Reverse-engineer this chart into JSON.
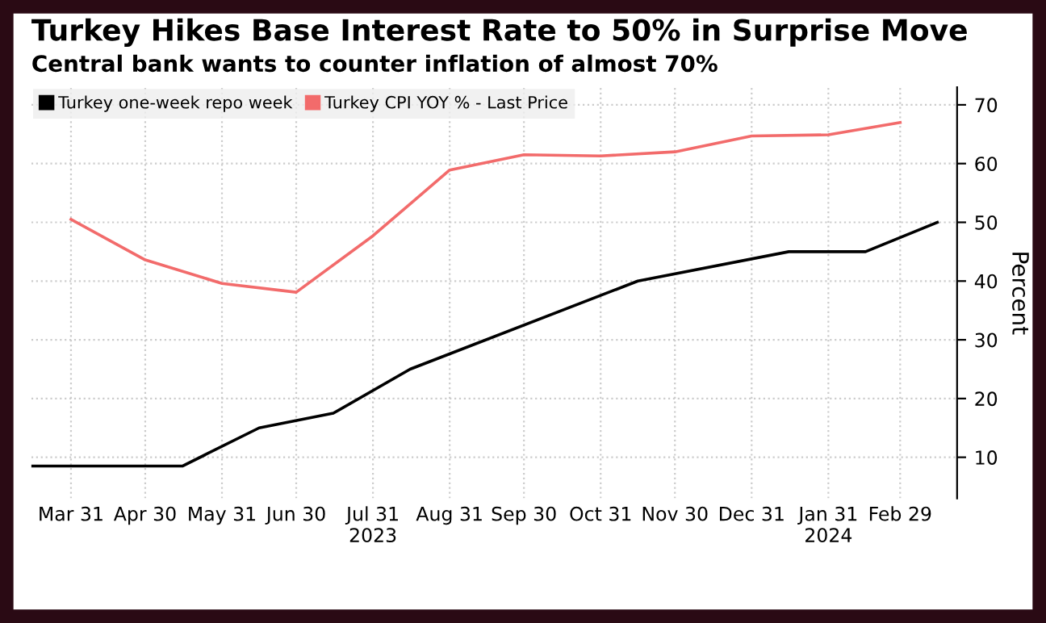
{
  "chart_data": {
    "type": "line",
    "title": "Turkey Hikes Base Interest Rate to 50% in Surprise Move",
    "subtitle": "Central bank wants to counter inflation of almost 70%",
    "ylabel": "Percent",
    "series": [
      {
        "name": "Turkey one-week repo week",
        "color": "#000000",
        "x": [
          "2023-03-15",
          "2023-05-15",
          "2023-06-15",
          "2023-07-15",
          "2023-08-15",
          "2023-11-15",
          "2024-01-15",
          "2024-02-15",
          "2024-03-15"
        ],
        "values": [
          8.5,
          8.5,
          15,
          17.5,
          25,
          40,
          45,
          45,
          50
        ]
      },
      {
        "name": "Turkey CPI YOY % - Last Price",
        "color": "#f26b6b",
        "x": [
          "2023-03-31",
          "2023-04-30",
          "2023-05-31",
          "2023-06-30",
          "2023-07-31",
          "2023-08-31",
          "2023-09-30",
          "2023-10-31",
          "2023-11-30",
          "2023-12-31",
          "2024-01-31",
          "2024-02-29"
        ],
        "values": [
          50.5,
          43.6,
          39.6,
          38.1,
          47.7,
          58.9,
          61.5,
          61.3,
          62.0,
          64.7,
          64.9,
          67.0
        ]
      }
    ],
    "xlim": [
      "2023-03-15",
      "2024-03-23"
    ],
    "xticks": [
      {
        "value": "2023-03-31",
        "label": "Mar 31"
      },
      {
        "value": "2023-04-30",
        "label": "Apr 30"
      },
      {
        "value": "2023-05-31",
        "label": "May 31"
      },
      {
        "value": "2023-06-30",
        "label": "Jun 30"
      },
      {
        "value": "2023-07-31",
        "label": "Jul 31\n2023"
      },
      {
        "value": "2023-08-31",
        "label": "Aug 31"
      },
      {
        "value": "2023-09-30",
        "label": "Sep 30"
      },
      {
        "value": "2023-10-31",
        "label": "Oct 31"
      },
      {
        "value": "2023-11-30",
        "label": "Nov 30"
      },
      {
        "value": "2023-12-31",
        "label": "Dec 31"
      },
      {
        "value": "2024-01-31",
        "label": "Jan 31\n2024"
      },
      {
        "value": "2024-02-29",
        "label": "Feb 29"
      }
    ],
    "ylim": [
      3,
      73
    ],
    "yticks": [
      10,
      20,
      30,
      40,
      50,
      60,
      70
    ],
    "grid": true,
    "legend": "top left",
    "marker": "none",
    "line_style": "solid"
  }
}
